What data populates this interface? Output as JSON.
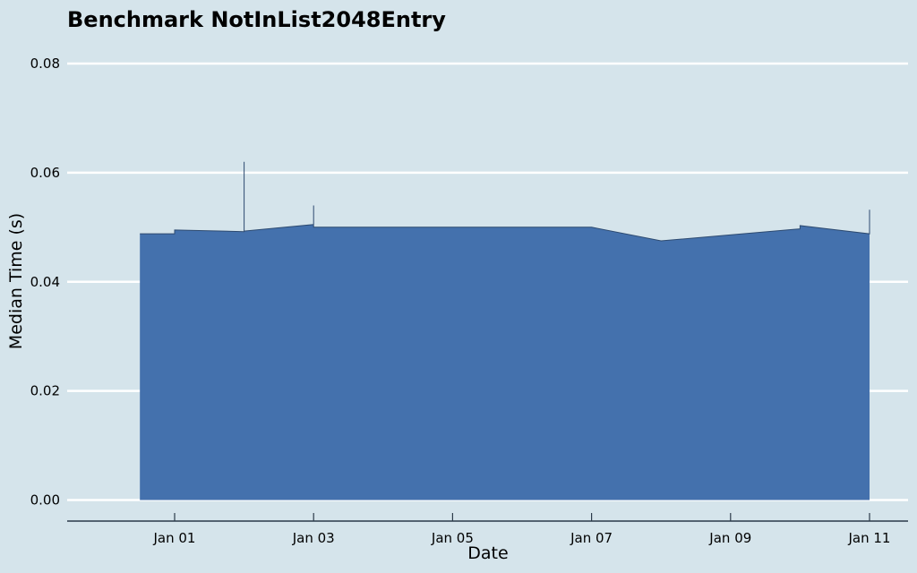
{
  "chart_data": {
    "type": "area",
    "title": "Benchmark NotInList2048Entry",
    "xlabel": "Date",
    "ylabel": "Median Time (s)",
    "ylim": [
      0.0,
      0.08
    ],
    "xlim": [
      "2023-12-31T02:24",
      "2024-01-11T14:24"
    ],
    "y_ticks": [
      "0.00",
      "0.02",
      "0.04",
      "0.06",
      "0.08"
    ],
    "x_ticks": [
      {
        "date": "2024-01-01",
        "label": "Jan 01"
      },
      {
        "date": "2024-01-03",
        "label": "Jan 03"
      },
      {
        "date": "2024-01-05",
        "label": "Jan 05"
      },
      {
        "date": "2024-01-07",
        "label": "Jan 07"
      },
      {
        "date": "2024-01-09",
        "label": "Jan 09"
      },
      {
        "date": "2024-01-11",
        "label": "Jan 11"
      }
    ],
    "grid": true,
    "series": [
      {
        "color": "#4471ad",
        "points": [
          {
            "x": "2024-01-01",
            "y": 0.0488
          },
          {
            "x": "2024-01-01",
            "y": 0.0495
          },
          {
            "x": "2024-01-02",
            "y": 0.0492
          },
          {
            "x": "2024-01-02",
            "y": 0.062
          },
          {
            "x": "2024-01-02",
            "y": 0.0493
          },
          {
            "x": "2024-01-03",
            "y": 0.0505
          },
          {
            "x": "2024-01-03",
            "y": 0.054
          },
          {
            "x": "2024-01-03",
            "y": 0.05
          },
          {
            "x": "2024-01-07",
            "y": 0.05
          },
          {
            "x": "2024-01-08",
            "y": 0.0475
          },
          {
            "x": "2024-01-10",
            "y": 0.0497
          },
          {
            "x": "2024-01-10",
            "y": 0.0503
          },
          {
            "x": "2024-01-11",
            "y": 0.0488
          },
          {
            "x": "2024-01-11",
            "y": 0.0532
          }
        ]
      }
    ]
  }
}
